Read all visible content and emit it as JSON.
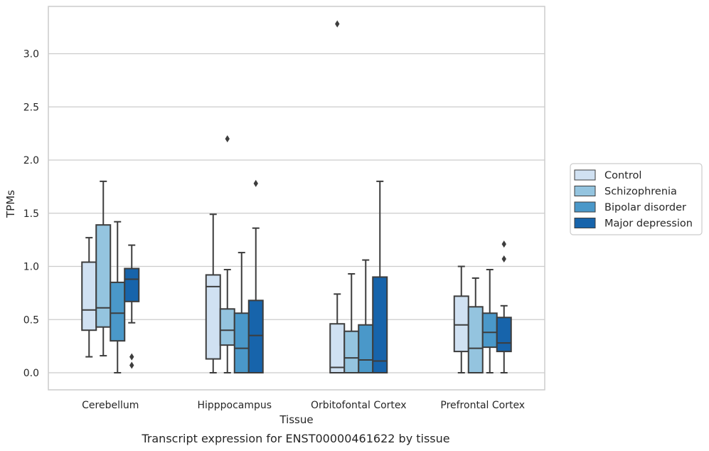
{
  "chart_data": {
    "type": "box",
    "title": "",
    "caption": "Transcript expression for ENST00000461622 by tissue",
    "xlabel": "Tissue",
    "ylabel": "TPMs",
    "ylim": [
      -0.16,
      3.42
    ],
    "yticks": [
      "0.0",
      "0.5",
      "1.0",
      "1.5",
      "2.0",
      "2.5",
      "3.0"
    ],
    "grid": "horizontal",
    "legend_position": "right",
    "categories": [
      "Cerebellum",
      "Hipppocampus",
      "Orbitofontal Cortex",
      "Prefrontal Cortex"
    ],
    "series": [
      {
        "name": "Control",
        "color": "#d0e1f2",
        "boxes": [
          {
            "whislo": 0.15,
            "q1": 0.4,
            "med": 0.59,
            "q3": 1.04,
            "whishi": 1.27,
            "fliers": []
          },
          {
            "whislo": 0.0,
            "q1": 0.13,
            "med": 0.81,
            "q3": 0.92,
            "whishi": 1.49,
            "fliers": []
          },
          {
            "whislo": 0.0,
            "q1": 0.0,
            "med": 0.05,
            "q3": 0.46,
            "whishi": 0.74,
            "fliers": [
              3.28
            ]
          },
          {
            "whislo": 0.0,
            "q1": 0.2,
            "med": 0.45,
            "q3": 0.72,
            "whishi": 1.0,
            "fliers": []
          }
        ]
      },
      {
        "name": "Schizophrenia",
        "color": "#94c4df",
        "boxes": [
          {
            "whislo": 0.16,
            "q1": 0.43,
            "med": 0.61,
            "q3": 1.39,
            "whishi": 1.8,
            "fliers": []
          },
          {
            "whislo": 0.0,
            "q1": 0.26,
            "med": 0.4,
            "q3": 0.6,
            "whishi": 0.97,
            "fliers": [
              2.2
            ]
          },
          {
            "whislo": 0.0,
            "q1": 0.0,
            "med": 0.14,
            "q3": 0.39,
            "whishi": 0.93,
            "fliers": []
          },
          {
            "whislo": 0.0,
            "q1": 0.0,
            "med": 0.23,
            "q3": 0.62,
            "whishi": 0.89,
            "fliers": []
          }
        ]
      },
      {
        "name": "Bipolar disorder",
        "color": "#4a98c9",
        "boxes": [
          {
            "whislo": 0.0,
            "q1": 0.3,
            "med": 0.56,
            "q3": 0.85,
            "whishi": 1.42,
            "fliers": []
          },
          {
            "whislo": 0.0,
            "q1": 0.0,
            "med": 0.23,
            "q3": 0.56,
            "whishi": 1.13,
            "fliers": []
          },
          {
            "whislo": 0.0,
            "q1": 0.0,
            "med": 0.12,
            "q3": 0.45,
            "whishi": 1.06,
            "fliers": []
          },
          {
            "whislo": 0.0,
            "q1": 0.24,
            "med": 0.38,
            "q3": 0.56,
            "whishi": 0.97,
            "fliers": []
          }
        ]
      },
      {
        "name": "Major depression",
        "color": "#1764ab",
        "boxes": [
          {
            "whislo": 0.47,
            "q1": 0.67,
            "med": 0.88,
            "q3": 0.98,
            "whishi": 1.2,
            "fliers": [
              0.15,
              0.07
            ]
          },
          {
            "whislo": 0.0,
            "q1": 0.0,
            "med": 0.35,
            "q3": 0.68,
            "whishi": 1.36,
            "fliers": [
              1.78
            ]
          },
          {
            "whislo": 0.0,
            "q1": 0.0,
            "med": 0.11,
            "q3": 0.9,
            "whishi": 1.8,
            "fliers": []
          },
          {
            "whislo": 0.0,
            "q1": 0.2,
            "med": 0.28,
            "q3": 0.52,
            "whishi": 0.63,
            "fliers": [
              1.21,
              1.07
            ]
          }
        ]
      }
    ]
  }
}
